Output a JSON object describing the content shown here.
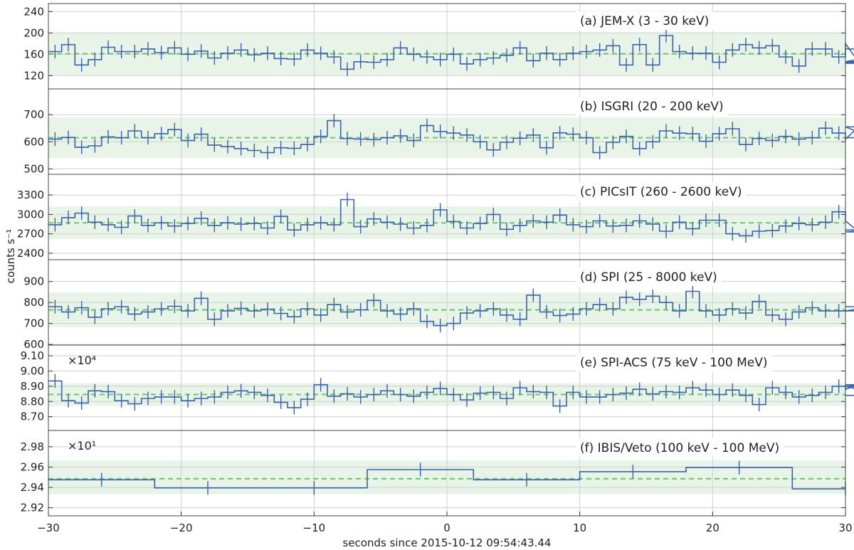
{
  "figure": {
    "xlabel": "seconds since 2015-10-12 09:54:43.44",
    "ylabel": "counts s⁻¹",
    "xlim": [
      -30,
      30
    ],
    "xticks": [
      -30,
      -20,
      -10,
      0,
      10,
      20,
      30
    ],
    "colors": {
      "line": "#3b62a8",
      "mean": "#7cc47c",
      "band": "#e8f4e8",
      "grid": "#cfcfcf"
    }
  },
  "chart_data": [
    {
      "type": "line",
      "title": "(a) JEM-X (3 - 30 keV)",
      "multiplier": "",
      "ylim": [
        95,
        255
      ],
      "yticks": [
        120,
        160,
        200,
        240
      ],
      "tick_decimals": 0,
      "mean": 161,
      "band": [
        121,
        201
      ],
      "bin_width": 1.0,
      "values": [
        165,
        178,
        140,
        150,
        173,
        165,
        165,
        170,
        163,
        172,
        160,
        166,
        153,
        162,
        168,
        159,
        162,
        152,
        151,
        168,
        162,
        155,
        132,
        146,
        145,
        150,
        172,
        160,
        155,
        150,
        160,
        142,
        150,
        153,
        158,
        172,
        148,
        162,
        150,
        162,
        165,
        168,
        176,
        140,
        178,
        140,
        195,
        165,
        162,
        162,
        145,
        168,
        178,
        172,
        176,
        155,
        138,
        170,
        170,
        155,
        180,
        145,
        146,
        143,
        146,
        170
      ]
    },
    {
      "type": "line",
      "title": "(b) ISGRI (20 - 200 keV)",
      "multiplier": "",
      "ylim": [
        480,
        795
      ],
      "yticks": [
        500,
        600,
        700
      ],
      "tick_decimals": 0,
      "mean": 615,
      "band": [
        540,
        690
      ],
      "bin_width": 1.0,
      "values": [
        610,
        616,
        580,
        585,
        618,
        615,
        640,
        615,
        630,
        645,
        605,
        628,
        588,
        582,
        575,
        568,
        560,
        578,
        576,
        590,
        620,
        678,
        612,
        610,
        608,
        615,
        622,
        605,
        660,
        638,
        632,
        625,
        600,
        570,
        598,
        613,
        625,
        578,
        633,
        628,
        615,
        560,
        598,
        620,
        575,
        600,
        640,
        632,
        630,
        602,
        630,
        648,
        590,
        612,
        605,
        620,
        610,
        615,
        650,
        632,
        610,
        655,
        615
      ]
    },
    {
      "type": "line",
      "title": "(c) PICsIT (260 - 2600 keV)",
      "multiplier": "",
      "ylim": [
        2300,
        3620
      ],
      "yticks": [
        2400,
        2700,
        3000,
        3300
      ],
      "tick_decimals": 0,
      "mean": 2870,
      "band": [
        2620,
        3120
      ],
      "bin_width": 1.0,
      "values": [
        2840,
        2950,
        3020,
        2880,
        2840,
        2800,
        2975,
        2830,
        2870,
        2820,
        2860,
        2940,
        2830,
        2870,
        2850,
        2860,
        2790,
        2970,
        2760,
        2840,
        2870,
        2840,
        3230,
        2810,
        2930,
        2880,
        2850,
        2790,
        2830,
        3070,
        2890,
        2790,
        2860,
        3000,
        2770,
        2830,
        2900,
        2880,
        2990,
        2840,
        2810,
        2900,
        2820,
        2830,
        2900,
        2850,
        2740,
        2880,
        2780,
        2910,
        2910,
        2700,
        2670,
        2740,
        2750,
        2820,
        2860,
        2840,
        2880,
        3040,
        2900,
        2730,
        2760
      ]
    },
    {
      "type": "line",
      "title": "(d) SPI (25 - 8000 keV)",
      "multiplier": "",
      "ylim": [
        597,
        1004
      ],
      "yticks": [
        600,
        700,
        800,
        900
      ],
      "tick_decimals": 0,
      "mean": 765,
      "band": [
        683,
        848
      ],
      "bin_width": 1.0,
      "values": [
        780,
        755,
        775,
        730,
        770,
        780,
        745,
        755,
        770,
        782,
        760,
        820,
        720,
        760,
        772,
        760,
        768,
        748,
        732,
        770,
        740,
        790,
        755,
        765,
        810,
        760,
        745,
        770,
        710,
        690,
        700,
        750,
        760,
        770,
        740,
        720,
        835,
        755,
        738,
        745,
        770,
        790,
        770,
        825,
        815,
        830,
        800,
        760,
        853,
        760,
        740,
        770,
        750,
        805,
        740,
        720,
        755,
        775,
        760,
        760,
        760,
        760,
        780
      ]
    },
    {
      "type": "line",
      "title": "(e) SPI-ACS (75 keV - 100 MeV)",
      "multiplier": "×10⁴",
      "ylim": [
        8.61,
        9.17
      ],
      "yticks": [
        8.7,
        8.8,
        8.9,
        9.0,
        9.1
      ],
      "tick_decimals": 2,
      "mean": 8.846,
      "band": [
        8.77,
        8.92
      ],
      "bin_width": 1.0,
      "values": [
        8.935,
        8.805,
        8.79,
        8.87,
        8.865,
        8.805,
        8.785,
        8.82,
        8.83,
        8.83,
        8.805,
        8.82,
        8.83,
        8.86,
        8.87,
        8.86,
        8.84,
        8.795,
        8.76,
        8.815,
        8.91,
        8.835,
        8.85,
        8.83,
        8.845,
        8.87,
        8.845,
        8.835,
        8.86,
        8.885,
        8.845,
        8.81,
        8.855,
        8.86,
        8.82,
        8.89,
        8.865,
        8.86,
        8.77,
        8.86,
        8.83,
        8.83,
        8.845,
        8.855,
        8.88,
        8.85,
        8.865,
        8.86,
        8.89,
        8.875,
        8.845,
        8.875,
        8.84,
        8.78,
        8.89,
        8.86,
        8.83,
        8.84,
        8.86,
        8.9,
        8.88,
        8.91,
        8.9,
        8.84
      ]
    },
    {
      "type": "line",
      "title": "(f) IBIS/Veto (100 keV - 100 MeV)",
      "multiplier": "×10¹",
      "ylim": [
        2.912,
        2.996
      ],
      "yticks": [
        2.92,
        2.94,
        2.96,
        2.98
      ],
      "tick_decimals": 2,
      "mean": 2.9485,
      "band": [
        2.9335,
        2.9665
      ],
      "bin_width": 8.0,
      "values": [
        2.9475,
        2.9395,
        2.9395,
        2.9575,
        2.9475,
        2.9555,
        2.9595,
        2.9385
      ]
    }
  ]
}
